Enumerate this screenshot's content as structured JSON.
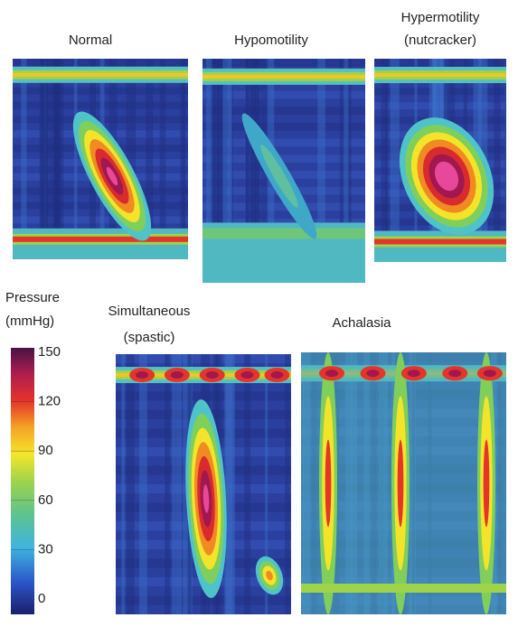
{
  "panels": [
    {
      "title": [
        "Normal"
      ]
    },
    {
      "title": [
        "Hypomotility"
      ]
    },
    {
      "title": [
        "Hypermotility",
        "(nutcracker)"
      ]
    },
    {
      "title": [
        "Simultaneous",
        "(spastic)"
      ]
    },
    {
      "title": [
        "Achalasia"
      ]
    }
  ],
  "colorbar": {
    "title": [
      "Pressure",
      "(mmHg)"
    ],
    "range": [
      0,
      150
    ],
    "ticks": [
      0,
      30,
      60,
      90,
      120,
      150
    ]
  }
}
